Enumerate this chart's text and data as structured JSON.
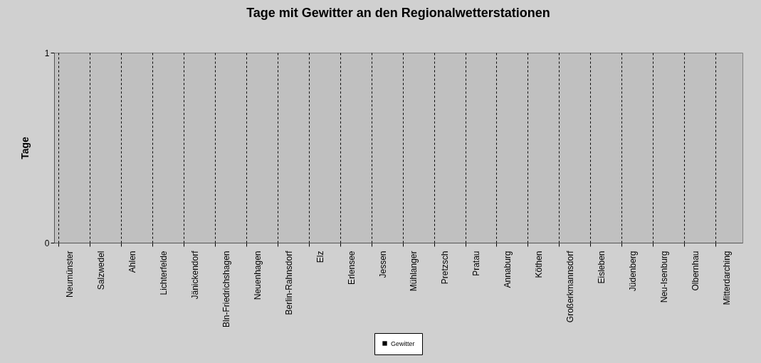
{
  "chart_data": {
    "type": "bar",
    "title": "Tage mit Gewitter  an den Regionalwetterstationen",
    "ylabel": "Tage",
    "categories": [
      "Neumünster",
      "Salzwedel",
      "Ahlen",
      "Lichterfelde",
      "Jänickendorf",
      "Bln-Friedrichshagen",
      "Neuenhagen",
      "Berlin-Rahnsdorf",
      "Elz",
      "Erlensee",
      "Jessen",
      "Mühlanger",
      "Pretzsch",
      "Pratau",
      "Annaburg",
      "Köthen",
      "Großerkmannsdorf",
      "Eisleben",
      "Jüdenberg",
      "Neu-Isenburg",
      "Olbernhau",
      "Mitterdarching"
    ],
    "series": [
      {
        "name": "Gewitter",
        "color": "#000000",
        "values": [
          0,
          0,
          0,
          0,
          0,
          0,
          0,
          0,
          0,
          0,
          0,
          0,
          0,
          0,
          0,
          0,
          0,
          0,
          0,
          0,
          0,
          0
        ]
      }
    ],
    "ylim": [
      0,
      1
    ],
    "yticks": [
      0,
      1
    ],
    "grid": "x",
    "legend": "bottom"
  }
}
